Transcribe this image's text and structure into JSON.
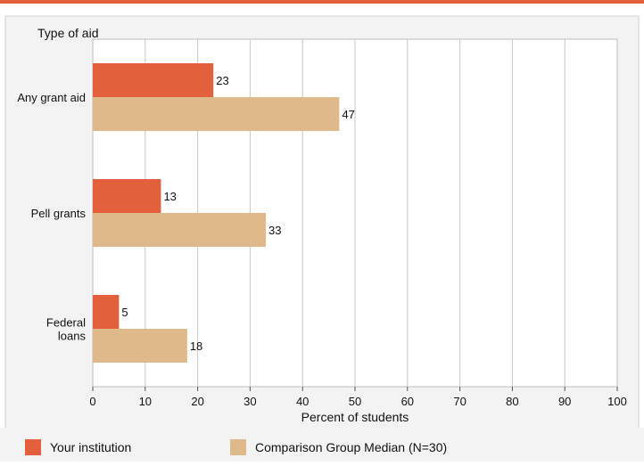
{
  "chart_data": {
    "type": "bar",
    "orientation": "horizontal",
    "title": "Type of aid",
    "xlabel": "Percent of students",
    "ylabel": "",
    "categories": [
      "Any grant aid",
      "Pell grants",
      "Federal loans"
    ],
    "category_lines": [
      [
        "Any grant aid"
      ],
      [
        "Pell grants"
      ],
      [
        "Federal",
        "loans"
      ]
    ],
    "series": [
      {
        "name": "Your institution",
        "values": [
          23,
          13,
          5
        ],
        "color": "#E2603B"
      },
      {
        "name": "Comparison Group Median (N=30)",
        "values": [
          47,
          33,
          18
        ],
        "color": "#E0B98A"
      }
    ],
    "xlim": [
      0,
      100
    ],
    "xticks": [
      0,
      10,
      20,
      30,
      40,
      50,
      60,
      70,
      80,
      90,
      100
    ],
    "grid": true,
    "legend": "bottom"
  },
  "colors": {
    "accent_bar": "#E2603B",
    "panel_bg": "#F3F3F3",
    "plot_bg": "#FFFFFF",
    "grid": "#C8C8C8"
  }
}
